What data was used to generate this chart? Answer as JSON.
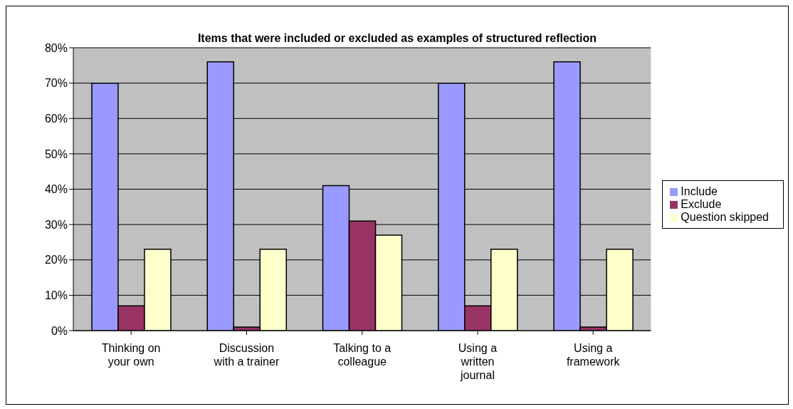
{
  "chart_data": {
    "type": "bar",
    "title": "Items that were included or excluded as examples of structured reflection",
    "categories": [
      "Thinking on your own",
      "Discussion with a trainer",
      "Talking to a colleague",
      "Using a written journal",
      "Using a framework"
    ],
    "series": [
      {
        "name": "Include",
        "color": "#9999ff",
        "values": [
          70,
          76,
          41,
          70,
          76
        ]
      },
      {
        "name": "Exclude",
        "color": "#993366",
        "values": [
          7,
          1,
          31,
          7,
          1
        ]
      },
      {
        "name": "Question skipped",
        "color": "#ffffcc",
        "values": [
          23,
          23,
          27,
          23,
          23
        ]
      }
    ],
    "ylim": [
      0,
      80
    ],
    "yticks": [
      {
        "value": 0,
        "label": "0%"
      },
      {
        "value": 10,
        "label": "10%"
      },
      {
        "value": 20,
        "label": "20%"
      },
      {
        "value": 30,
        "label": "30%"
      },
      {
        "value": 40,
        "label": "40%"
      },
      {
        "value": 50,
        "label": "50%"
      },
      {
        "value": 60,
        "label": "60%"
      },
      {
        "value": 70,
        "label": "70%"
      },
      {
        "value": 80,
        "label": "80%"
      }
    ],
    "grid": "y",
    "legend": "right"
  }
}
